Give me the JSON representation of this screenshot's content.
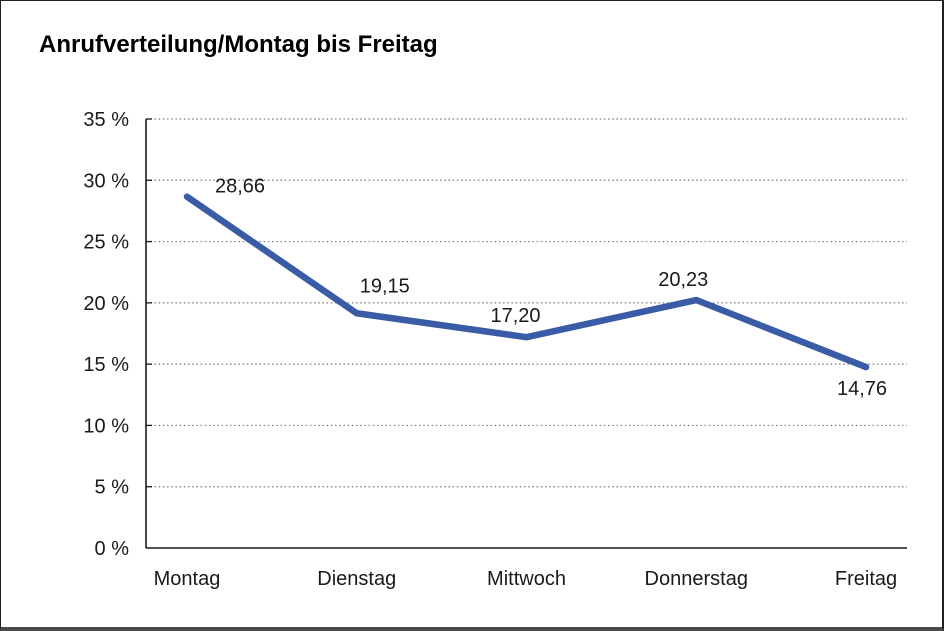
{
  "title": "Anrufverteilung/Montag bis Freitag",
  "chart_data": {
    "type": "line",
    "title": "Anrufverteilung/Montag bis Freitag",
    "categories": [
      "Montag",
      "Dienstag",
      "Mittwoch",
      "Donnerstag",
      "Freitag"
    ],
    "values": [
      28.66,
      19.15,
      17.2,
      20.23,
      14.76
    ],
    "point_labels": [
      "28,66",
      "19,15",
      "17,20",
      "20,23",
      "14,76"
    ],
    "series_name": "Anrufverteilung",
    "xlabel": "",
    "ylabel": "",
    "ylim": [
      0,
      35
    ],
    "y_tick_step": 5,
    "y_tick_labels": [
      "0 %",
      "5 %",
      "10 %",
      "15 %",
      "20 %",
      "25 %",
      "30 %",
      "35 %"
    ],
    "y_unit": "%",
    "grid": "horizontal-dotted",
    "legend": "none",
    "line_color": "#3A5BA5",
    "grid_color": "#7f7f7f",
    "axis_color": "#1a1a1a",
    "label_color": "#1a1a1a"
  }
}
